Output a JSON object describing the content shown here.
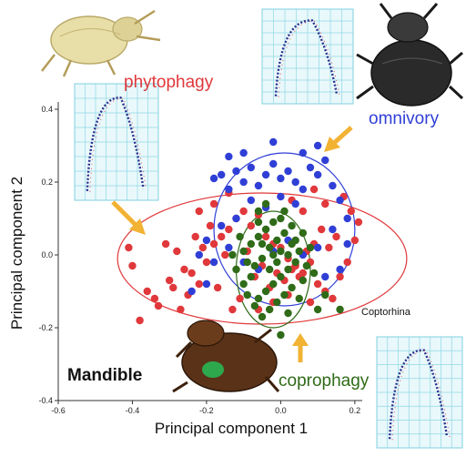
{
  "chart_data": {
    "type": "scatter",
    "xlabel": "Principal component 1",
    "ylabel": "Principal component 2",
    "xlim": [
      -0.6,
      0.22
    ],
    "ylim": [
      -0.4,
      0.42
    ],
    "x_ticks": [
      "-0.6",
      "-0.4",
      "-0.2",
      "0.0",
      "0.2"
    ],
    "y_ticks": [
      "-0.4",
      "-0.2",
      "0.0",
      "0.2",
      "0.4"
    ],
    "grid": false,
    "series": [
      {
        "name": "phytophagy",
        "color": "#e0383b",
        "ellipse": {
          "cx": -0.05,
          "cy": -0.01,
          "rx": 0.39,
          "ry": 0.18
        },
        "points": [
          [
            -0.41,
            0.02
          ],
          [
            -0.4,
            -0.03
          ],
          [
            -0.36,
            -0.1
          ],
          [
            -0.34,
            -0.12
          ],
          [
            -0.38,
            -0.18
          ],
          [
            -0.33,
            -0.14
          ],
          [
            -0.3,
            -0.07
          ],
          [
            -0.28,
            0.01
          ],
          [
            -0.26,
            -0.04
          ],
          [
            -0.24,
            -0.05
          ],
          [
            -0.22,
            -0.08
          ],
          [
            -0.2,
            -0.02
          ],
          [
            -0.18,
            0.03
          ],
          [
            -0.16,
            0.05
          ],
          [
            -0.14,
            0.07
          ],
          [
            -0.12,
            0.1
          ],
          [
            -0.1,
            0.12
          ],
          [
            -0.08,
            0.08
          ],
          [
            -0.06,
            0.11
          ],
          [
            -0.04,
            0.05
          ],
          [
            -0.02,
            0.03
          ],
          [
            0.0,
            0.02
          ],
          [
            0.02,
            -0.01
          ],
          [
            0.04,
            -0.03
          ],
          [
            0.06,
            -0.05
          ],
          [
            0.08,
            -0.02
          ],
          [
            0.1,
            -0.08
          ],
          [
            0.12,
            -0.1
          ],
          [
            0.14,
            -0.12
          ],
          [
            0.16,
            -0.06
          ],
          [
            0.18,
            -0.02
          ],
          [
            0.2,
            0.04
          ],
          [
            0.21,
            0.09
          ],
          [
            0.15,
            0.05
          ],
          [
            0.13,
            0.02
          ],
          [
            0.11,
            0.07
          ],
          [
            0.09,
            0.03
          ],
          [
            0.07,
            0.01
          ],
          [
            0.05,
            -0.06
          ],
          [
            0.03,
            -0.04
          ],
          [
            0.01,
            -0.07
          ],
          [
            -0.01,
            -0.05
          ],
          [
            -0.03,
            -0.09
          ],
          [
            -0.05,
            -0.03
          ],
          [
            -0.07,
            -0.06
          ],
          [
            -0.09,
            0.01
          ],
          [
            -0.11,
            -0.12
          ],
          [
            -0.13,
            -0.15
          ],
          [
            -0.15,
            0.0
          ],
          [
            -0.17,
            -0.09
          ],
          [
            -0.19,
            0.08
          ],
          [
            -0.21,
            0.02
          ],
          [
            -0.23,
            0.05
          ],
          [
            -0.25,
            -0.11
          ],
          [
            -0.27,
            -0.15
          ],
          [
            -0.29,
            -0.09
          ],
          [
            -0.31,
            0.03
          ],
          [
            -0.22,
            0.12
          ],
          [
            -0.18,
            0.14
          ],
          [
            -0.14,
            0.17
          ],
          [
            0.03,
            0.15
          ],
          [
            0.06,
            0.12
          ],
          [
            0.09,
            0.18
          ],
          [
            0.19,
            0.12
          ],
          [
            0.17,
            0.16
          ],
          [
            0.12,
            0.14
          ],
          [
            0.02,
            -0.11
          ],
          [
            -0.02,
            -0.13
          ],
          [
            -0.06,
            -0.15
          ],
          [
            0.08,
            -0.13
          ]
        ]
      },
      {
        "name": "omnivory",
        "color": "#2f3fd6",
        "ellipse": {
          "cx": 0.01,
          "cy": 0.07,
          "rx": 0.19,
          "ry": 0.21
        },
        "points": [
          [
            -0.18,
            0.21
          ],
          [
            -0.16,
            0.22
          ],
          [
            -0.14,
            0.18
          ],
          [
            -0.12,
            0.23
          ],
          [
            -0.1,
            0.2
          ],
          [
            -0.08,
            0.24
          ],
          [
            -0.06,
            0.19
          ],
          [
            -0.04,
            0.22
          ],
          [
            -0.02,
            0.25
          ],
          [
            0.0,
            0.21
          ],
          [
            0.02,
            0.23
          ],
          [
            0.04,
            0.2
          ],
          [
            0.06,
            0.18
          ],
          [
            0.08,
            0.24
          ],
          [
            0.1,
            0.22
          ],
          [
            0.12,
            0.26
          ],
          [
            0.14,
            0.19
          ],
          [
            0.16,
            0.15
          ],
          [
            0.18,
            0.1
          ],
          [
            0.04,
            0.14
          ],
          [
            0.0,
            0.16
          ],
          [
            -0.04,
            0.13
          ],
          [
            -0.08,
            0.15
          ],
          [
            -0.12,
            0.1
          ],
          [
            -0.16,
            0.08
          ],
          [
            -0.2,
            0.04
          ],
          [
            -0.22,
            0.0
          ],
          [
            -0.18,
            -0.02
          ],
          [
            -0.14,
            0.02
          ],
          [
            -0.1,
            -0.02
          ],
          [
            -0.06,
            -0.04
          ],
          [
            -0.02,
            0.01
          ],
          [
            0.02,
            0.04
          ],
          [
            0.06,
            0.0
          ],
          [
            0.1,
            0.02
          ],
          [
            0.14,
            0.07
          ],
          [
            0.18,
            0.03
          ],
          [
            0.16,
            -0.04
          ],
          [
            0.12,
            -0.06
          ],
          [
            -0.24,
            -0.1
          ],
          [
            -0.2,
            -0.08
          ],
          [
            -0.1,
            0.28
          ],
          [
            0.1,
            0.3
          ],
          [
            -0.02,
            0.31
          ],
          [
            0.06,
            0.28
          ],
          [
            -0.14,
            0.27
          ]
        ]
      },
      {
        "name": "coprophagy",
        "color": "#2f6b18",
        "ellipse": {
          "cx": -0.02,
          "cy": -0.04,
          "rx": 0.1,
          "ry": 0.16
        },
        "points": [
          [
            -0.02,
            0.09
          ],
          [
            0.0,
            0.1
          ],
          [
            -0.04,
            0.07
          ],
          [
            -0.06,
            0.05
          ],
          [
            -0.08,
            0.03
          ],
          [
            -0.1,
            0.01
          ],
          [
            -0.09,
            -0.02
          ],
          [
            -0.07,
            -0.03
          ],
          [
            -0.05,
            -0.01
          ],
          [
            -0.03,
            0.02
          ],
          [
            -0.01,
            0.04
          ],
          [
            0.01,
            0.06
          ],
          [
            0.03,
            0.03
          ],
          [
            0.05,
            0.01
          ],
          [
            0.04,
            -0.02
          ],
          [
            0.02,
            -0.04
          ],
          [
            0.0,
            -0.06
          ],
          [
            -0.02,
            -0.08
          ],
          [
            -0.04,
            -0.1
          ],
          [
            -0.06,
            -0.12
          ],
          [
            -0.08,
            -0.06
          ],
          [
            -0.1,
            -0.08
          ],
          [
            -0.12,
            -0.04
          ],
          [
            -0.11,
            0.05
          ],
          [
            -0.06,
            0.09
          ],
          [
            0.01,
            0.12
          ],
          [
            0.03,
            0.08
          ],
          [
            0.06,
            0.06
          ],
          [
            0.07,
            -0.03
          ],
          [
            0.06,
            -0.07
          ],
          [
            0.03,
            -0.09
          ],
          [
            0.01,
            -0.11
          ],
          [
            -0.01,
            -0.13
          ],
          [
            -0.03,
            -0.15
          ],
          [
            -0.05,
            -0.17
          ],
          [
            -0.07,
            -0.14
          ],
          [
            -0.09,
            -0.11
          ],
          [
            0.05,
            -0.12
          ],
          [
            0.02,
            -0.16
          ],
          [
            -0.01,
            -0.02
          ],
          [
            -0.02,
            0.0
          ],
          [
            0.0,
            0.01
          ],
          [
            -0.03,
            -0.04
          ],
          [
            -0.05,
            0.03
          ],
          [
            0.02,
            0.0
          ],
          [
            0.04,
            0.04
          ],
          [
            -0.13,
            0.0
          ],
          [
            0.08,
            0.02
          ],
          [
            0.09,
            -0.05
          ],
          [
            0.12,
            -0.11
          ],
          [
            0.1,
            -0.15
          ],
          [
            -0.06,
            0.12
          ],
          [
            -0.04,
            0.14
          ],
          [
            0.0,
            -0.22
          ],
          [
            0.16,
            -0.15
          ]
        ]
      }
    ],
    "annotations": {
      "phytophagy": "phytophagy",
      "omnivory": "omnivory",
      "coprophagy": "coprophagy",
      "panel": "Mandible",
      "point_label": "Coptorhina"
    }
  }
}
